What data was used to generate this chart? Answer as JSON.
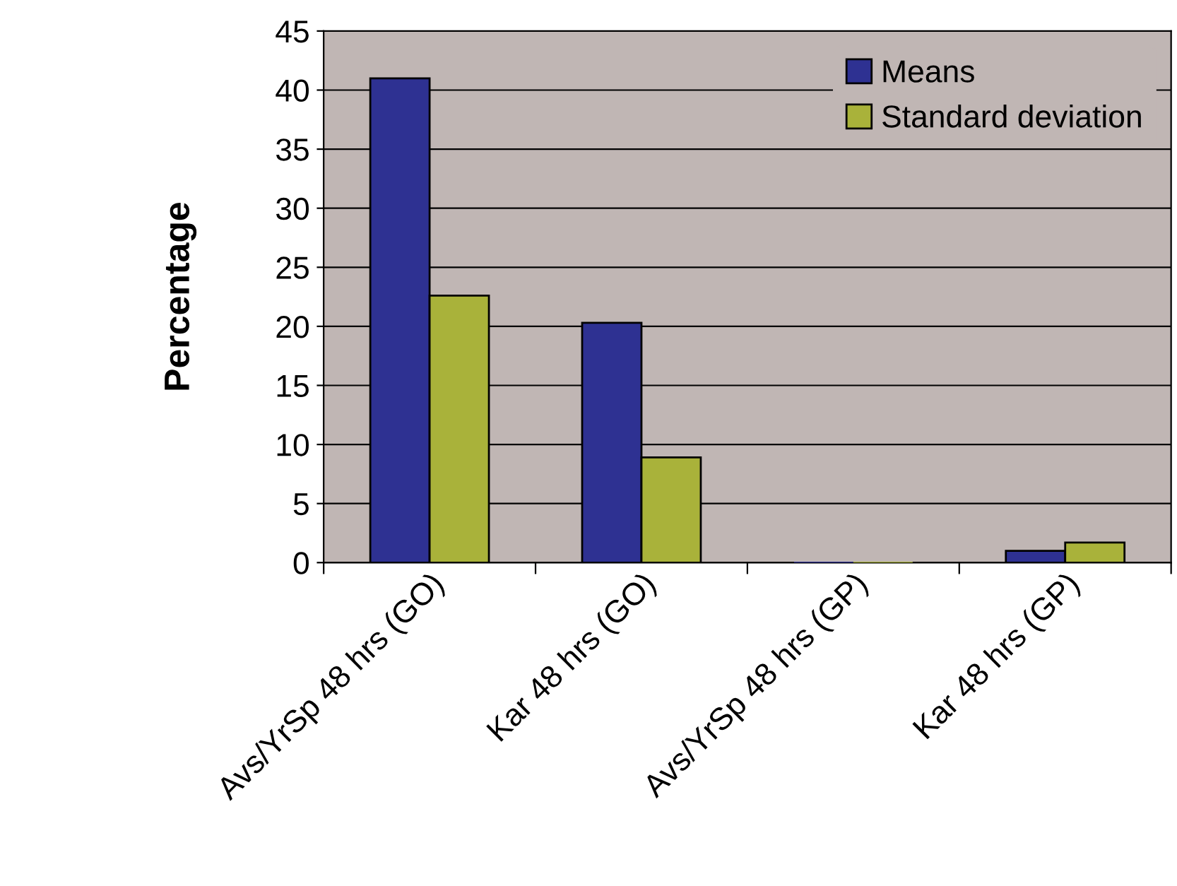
{
  "chart_data": {
    "type": "bar",
    "ylabel": "Percentage",
    "categories": [
      "Avs/YrSp 48 hrs (GO)",
      "Kar 48 hrs (GO)",
      "Avs/YrSp 48 hrs (GP)",
      "Kar 48 hrs (GP)"
    ],
    "series": [
      {
        "name": "Means",
        "color": "#2e3192",
        "values": [
          41,
          20.3,
          0,
          1.0
        ]
      },
      {
        "name": "Standard deviation",
        "color": "#a9b23a",
        "values": [
          22.6,
          8.9,
          0,
          1.7
        ]
      }
    ],
    "ylim": [
      0,
      45
    ],
    "yticks": [
      0,
      5,
      10,
      15,
      20,
      25,
      30,
      35,
      40,
      45
    ],
    "grid": "y",
    "legend": "top right"
  }
}
